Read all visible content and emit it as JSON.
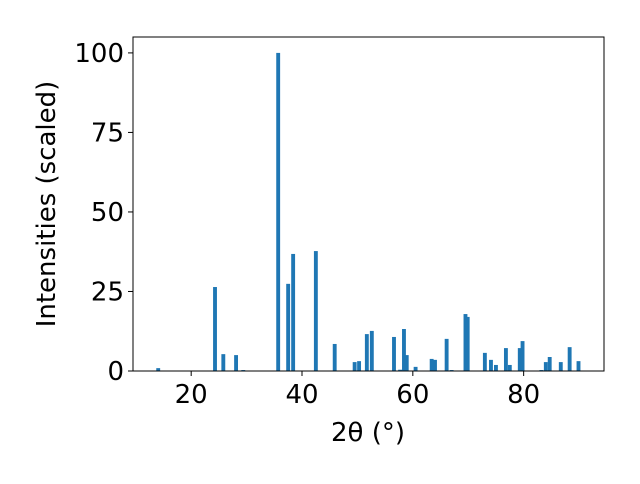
{
  "chart_data": {
    "type": "bar",
    "x_label": "2θ (°)",
    "y_label": "Intensities (scaled)",
    "x": [
      14.05,
      24.3,
      25.8,
      28.1,
      29.4,
      35.7,
      37.5,
      38.4,
      42.5,
      45.9,
      49.5,
      50.3,
      51.7,
      52.6,
      56.6,
      57.7,
      58.4,
      58.9,
      60.5,
      63.4,
      64.0,
      66.1,
      67.0,
      69.5,
      69.9,
      73.0,
      74.1,
      75.0,
      76.8,
      77.5,
      79.3,
      79.8,
      83.2,
      84.0,
      84.7,
      86.7,
      88.3,
      89.9
    ],
    "values": [
      0.9,
      26.4,
      5.3,
      5,
      0.3,
      100,
      27.4,
      36.8,
      37.7,
      8.5,
      2.8,
      3.1,
      11.6,
      12.6,
      10.7,
      0.4,
      13.2,
      5,
      1.3,
      3.8,
      3.5,
      10.1,
      0.3,
      17.9,
      17,
      5.7,
      3.5,
      1.9,
      7.2,
      1.9,
      7.2,
      9.4,
      0.3,
      2.8,
      4.4,
      2.8,
      7.5,
      3.1
    ],
    "color": "#1f77b4",
    "xlim": [
      9.5,
      94.5
    ],
    "xticks": [
      20,
      40,
      60,
      80
    ],
    "ylim": [
      0,
      105
    ],
    "yticks": [
      0,
      25,
      50,
      75,
      100
    ]
  }
}
